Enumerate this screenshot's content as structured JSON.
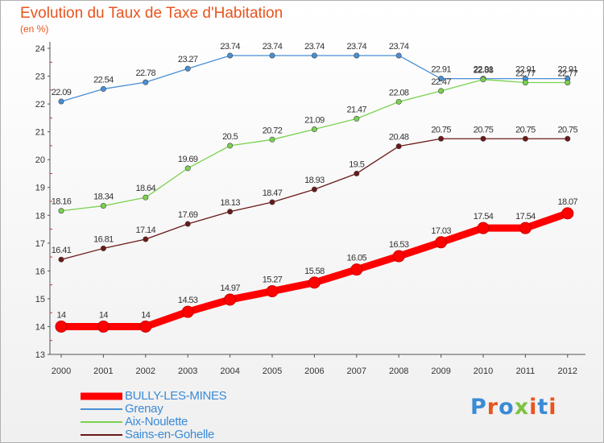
{
  "title": "Evolution du Taux de Taxe d'Habitation",
  "subtitle": "(en %)",
  "logo": {
    "text": "Proxiti",
    "colors": [
      "#3a8ad6",
      "#e8541e",
      "#3a8ad6",
      "#7dc242",
      "#e8541e",
      "#3a8ad6",
      "#e8541e"
    ]
  },
  "chart_data": {
    "type": "line",
    "title": "Evolution du Taux de Taxe d'Habitation",
    "ylabel": "(en %)",
    "xlabel": "",
    "x": [
      "2000",
      "2001",
      "2002",
      "2003",
      "2004",
      "2005",
      "2006",
      "2007",
      "2008",
      "2009",
      "2010",
      "2011",
      "2012"
    ],
    "ylim": [
      13,
      24
    ],
    "yticks": [
      "13",
      "14",
      "15",
      "16",
      "17",
      "18",
      "19",
      "20",
      "21",
      "22",
      "23",
      "24"
    ],
    "grid": false,
    "legend": "bottom-left",
    "series": [
      {
        "name": "BULLY-LES-MINES",
        "color": "#ff0000",
        "values": [
          14,
          14,
          14,
          14.53,
          14.97,
          15.27,
          15.58,
          16.05,
          16.53,
          17.03,
          17.54,
          17.54,
          18.07
        ],
        "labels": [
          "14",
          "14",
          "14",
          "14.53",
          "14.97",
          "15.27",
          "15.58",
          "16.05",
          "16.53",
          "17.03",
          "17.54",
          "17.54",
          "18.07"
        ]
      },
      {
        "name": "Grenay",
        "color": "#4a8fd4",
        "values": [
          22.09,
          22.54,
          22.78,
          23.27,
          23.74,
          23.74,
          23.74,
          23.74,
          23.74,
          22.91,
          22.91,
          22.91,
          22.91
        ],
        "labels": [
          "22.09",
          "22.54",
          "22.78",
          "23.27",
          "23.74",
          "23.74",
          "23.74",
          "23.74",
          "23.74",
          "22.91",
          "22.91",
          "22.91",
          "22.91"
        ]
      },
      {
        "name": "Aix-Noulette",
        "color": "#7ad250",
        "values": [
          18.16,
          18.34,
          18.64,
          19.69,
          20.5,
          20.72,
          21.09,
          21.47,
          22.08,
          22.47,
          22.88,
          22.77,
          22.77
        ],
        "labels": [
          "18.16",
          "18.34",
          "18.64",
          "19.69",
          "20.5",
          "20.72",
          "21.09",
          "21.47",
          "22.08",
          "22.47",
          "22.88",
          "22.77",
          "22.77"
        ]
      },
      {
        "name": "Sains-en-Gohelle",
        "color": "#6b1818",
        "values": [
          16.41,
          16.81,
          17.14,
          17.69,
          18.13,
          18.47,
          18.93,
          19.5,
          20.48,
          20.75,
          20.75,
          20.75,
          20.75
        ],
        "labels": [
          "16.41",
          "16.81",
          "17.14",
          "17.69",
          "18.13",
          "18.47",
          "18.93",
          "19.5",
          "20.48",
          "20.75",
          "20.75",
          "20.75",
          "20.75"
        ]
      }
    ]
  }
}
